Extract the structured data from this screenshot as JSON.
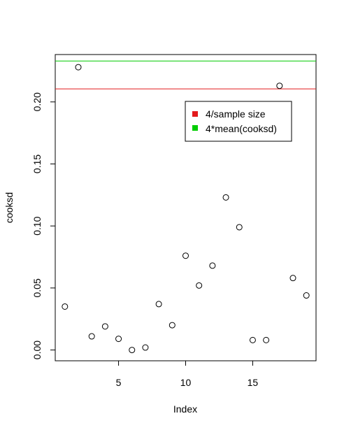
{
  "chart_data": {
    "type": "scatter",
    "xlabel": "Index",
    "ylabel": "cooksd",
    "xlim": [
      0.28,
      19.72
    ],
    "ylim": [
      -0.0087,
      0.2382
    ],
    "x_ticks": [
      5,
      10,
      15
    ],
    "y_ticks": [
      0.0,
      0.05,
      0.1,
      0.15,
      0.2
    ],
    "y_tick_labels": [
      "0.00",
      "0.05",
      "0.10",
      "0.15",
      "0.20"
    ],
    "grid": false,
    "points": [
      {
        "x": 1,
        "y": 0.035
      },
      {
        "x": 2,
        "y": 0.228
      },
      {
        "x": 3,
        "y": 0.011
      },
      {
        "x": 4,
        "y": 0.019
      },
      {
        "x": 5,
        "y": 0.009
      },
      {
        "x": 6,
        "y": 0.0
      },
      {
        "x": 7,
        "y": 0.002
      },
      {
        "x": 8,
        "y": 0.037
      },
      {
        "x": 9,
        "y": 0.02
      },
      {
        "x": 10,
        "y": 0.076
      },
      {
        "x": 11,
        "y": 0.052
      },
      {
        "x": 12,
        "y": 0.068
      },
      {
        "x": 13,
        "y": 0.123
      },
      {
        "x": 14,
        "y": 0.099
      },
      {
        "x": 15,
        "y": 0.008
      },
      {
        "x": 16,
        "y": 0.008
      },
      {
        "x": 17,
        "y": 0.213
      },
      {
        "x": 18,
        "y": 0.058
      },
      {
        "x": 19,
        "y": 0.044
      }
    ],
    "hlines": [
      {
        "name": "4/sample size",
        "y": 0.2105,
        "color": "#e31a1c"
      },
      {
        "name": "4*mean(cooksd)",
        "y": 0.233,
        "color": "#00cc00"
      }
    ],
    "legend": {
      "placement": "top-right",
      "entries": [
        {
          "label": "4/sample size",
          "color": "#e31a1c"
        },
        {
          "label": "4*mean(cooksd)",
          "color": "#00cc00"
        }
      ]
    }
  }
}
